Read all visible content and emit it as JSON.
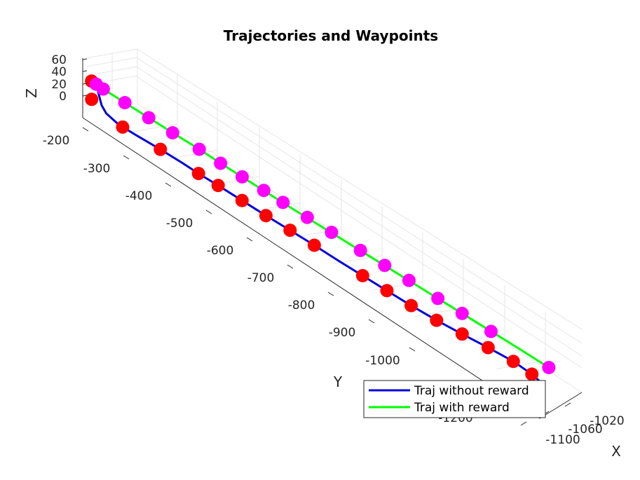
{
  "chart_data": {
    "type": "line",
    "title": "Trajectories and Waypoints",
    "xlabel": "X",
    "ylabel": "Y",
    "zlabel": "Z",
    "x_ticks": [
      "-1020",
      "-1060",
      "-1100"
    ],
    "y_ticks": [
      "-200",
      "-300",
      "-400",
      "-500",
      "-600",
      "-700",
      "-800",
      "-900",
      "-1000",
      "-1200"
    ],
    "z_ticks": [
      "60",
      "40",
      "20",
      "0"
    ],
    "legend_position": "bottom-right",
    "grid": true,
    "series": [
      {
        "name": "Traj without reward",
        "color": "#0000dd",
        "points": [
          [
            -1050,
            -160,
            22
          ],
          [
            -1050,
            -175,
            10
          ],
          [
            -1052,
            -195,
            -40
          ],
          [
            -1050,
            -210,
            -55
          ],
          [
            -1046,
            -240,
            -60
          ],
          [
            -1044,
            -280,
            -55
          ],
          [
            -1045,
            -330,
            -50
          ],
          [
            -1046,
            -375,
            -48
          ],
          [
            -1048,
            -410,
            -50
          ],
          [
            -1051,
            -450,
            -50
          ],
          [
            -1053,
            -500,
            -50
          ],
          [
            -1055,
            -550,
            -50
          ],
          [
            -1057,
            -600,
            -48
          ],
          [
            -1060,
            -650,
            -48
          ],
          [
            -1063,
            -700,
            -50
          ],
          [
            -1066,
            -750,
            -50
          ],
          [
            -1069,
            -800,
            -50
          ],
          [
            -1072,
            -850,
            -50
          ],
          [
            -1078,
            -900,
            -50
          ],
          [
            -1083,
            -950,
            -45
          ],
          [
            -1089,
            -1000,
            -40
          ],
          [
            -1093,
            -1050,
            -35
          ],
          [
            -1094,
            -1090,
            -38
          ],
          [
            -1094,
            -1110,
            -45
          ]
        ]
      },
      {
        "name": "Traj with reward",
        "color": "#00ff00",
        "points": [
          [
            -1050,
            -160,
            22
          ],
          [
            -1051,
            -180,
            20
          ],
          [
            -1053,
            -230,
            20
          ],
          [
            -1055,
            -280,
            20
          ],
          [
            -1057,
            -330,
            20
          ],
          [
            -1060,
            -380,
            20
          ],
          [
            -1062,
            -430,
            18
          ],
          [
            -1064,
            -480,
            18
          ],
          [
            -1066,
            -530,
            18
          ],
          [
            -1068,
            -580,
            18
          ],
          [
            -1071,
            -630,
            18
          ],
          [
            -1074,
            -680,
            18
          ],
          [
            -1077,
            -730,
            18
          ],
          [
            -1080,
            -780,
            18
          ],
          [
            -1083,
            -830,
            18
          ],
          [
            -1086,
            -880,
            18
          ],
          [
            -1089,
            -930,
            18
          ],
          [
            -1092,
            -980,
            18
          ],
          [
            -1095,
            -1030,
            18
          ],
          [
            -1097,
            -1080,
            18
          ],
          [
            -1098,
            -1110,
            18
          ]
        ]
      }
    ],
    "waypoints_without_reward": {
      "color": "#ff0000",
      "points": [
        [
          -1050,
          -160,
          22
        ],
        [
          -1050,
          -175,
          -40
        ],
        [
          -1046,
          -250,
          -60
        ],
        [
          -1045,
          -330,
          -50
        ],
        [
          -1048,
          -410,
          -50
        ],
        [
          -1051,
          -450,
          -50
        ],
        [
          -1053,
          -500,
          -50
        ],
        [
          -1055,
          -550,
          -50
        ],
        [
          -1057,
          -600,
          -48
        ],
        [
          -1060,
          -650,
          -48
        ],
        [
          -1066,
          -750,
          -50
        ],
        [
          -1069,
          -800,
          -50
        ],
        [
          -1072,
          -850,
          -50
        ],
        [
          -1078,
          -900,
          -50
        ],
        [
          -1083,
          -950,
          -45
        ],
        [
          -1089,
          -1000,
          -40
        ],
        [
          -1093,
          -1050,
          -35
        ],
        [
          -1094,
          -1090,
          -38
        ]
      ]
    },
    "waypoints_with_reward": {
      "color": "#ff00ff",
      "points": [
        [
          -1050,
          -170,
          22
        ],
        [
          -1051,
          -185,
          20
        ],
        [
          -1053,
          -230,
          20
        ],
        [
          -1055,
          -280,
          20
        ],
        [
          -1057,
          -330,
          20
        ],
        [
          -1060,
          -385,
          20
        ],
        [
          -1062,
          -430,
          18
        ],
        [
          -1064,
          -475,
          18
        ],
        [
          -1066,
          -520,
          18
        ],
        [
          -1068,
          -560,
          18
        ],
        [
          -1071,
          -610,
          18
        ],
        [
          -1074,
          -660,
          18
        ],
        [
          -1077,
          -720,
          18
        ],
        [
          -1080,
          -770,
          18
        ],
        [
          -1083,
          -820,
          18
        ],
        [
          -1086,
          -880,
          18
        ],
        [
          -1089,
          -930,
          18
        ],
        [
          -1092,
          -990,
          18
        ],
        [
          -1098,
          -1110,
          18
        ]
      ]
    }
  }
}
